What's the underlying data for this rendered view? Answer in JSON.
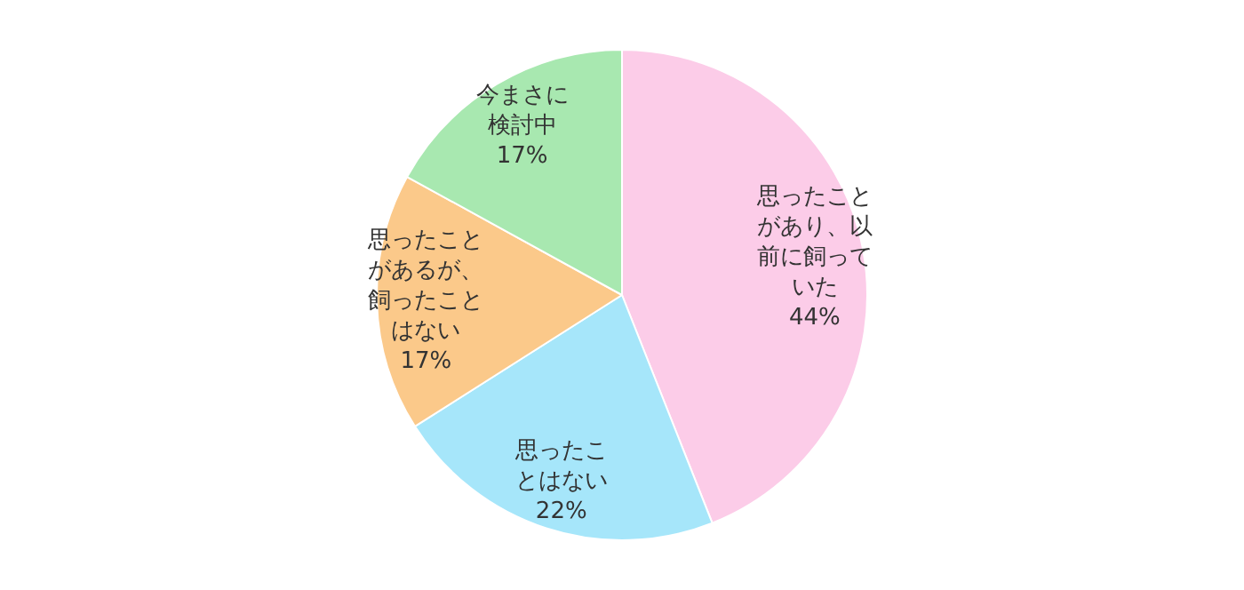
{
  "chart_data": {
    "type": "pie",
    "categories": [
      "思ったことがあり、以前に飼っていた",
      "思ったことはない",
      "思ったことがあるが、飼ったことはない",
      "今まさに検討中"
    ],
    "values": [
      44,
      22,
      17,
      17
    ],
    "value_labels": [
      "44%",
      "22%",
      "17%",
      "17%"
    ],
    "colors": [
      "#fccce8",
      "#a6e6fa",
      "#fbc98a",
      "#a8e8b0"
    ],
    "legend": false
  }
}
